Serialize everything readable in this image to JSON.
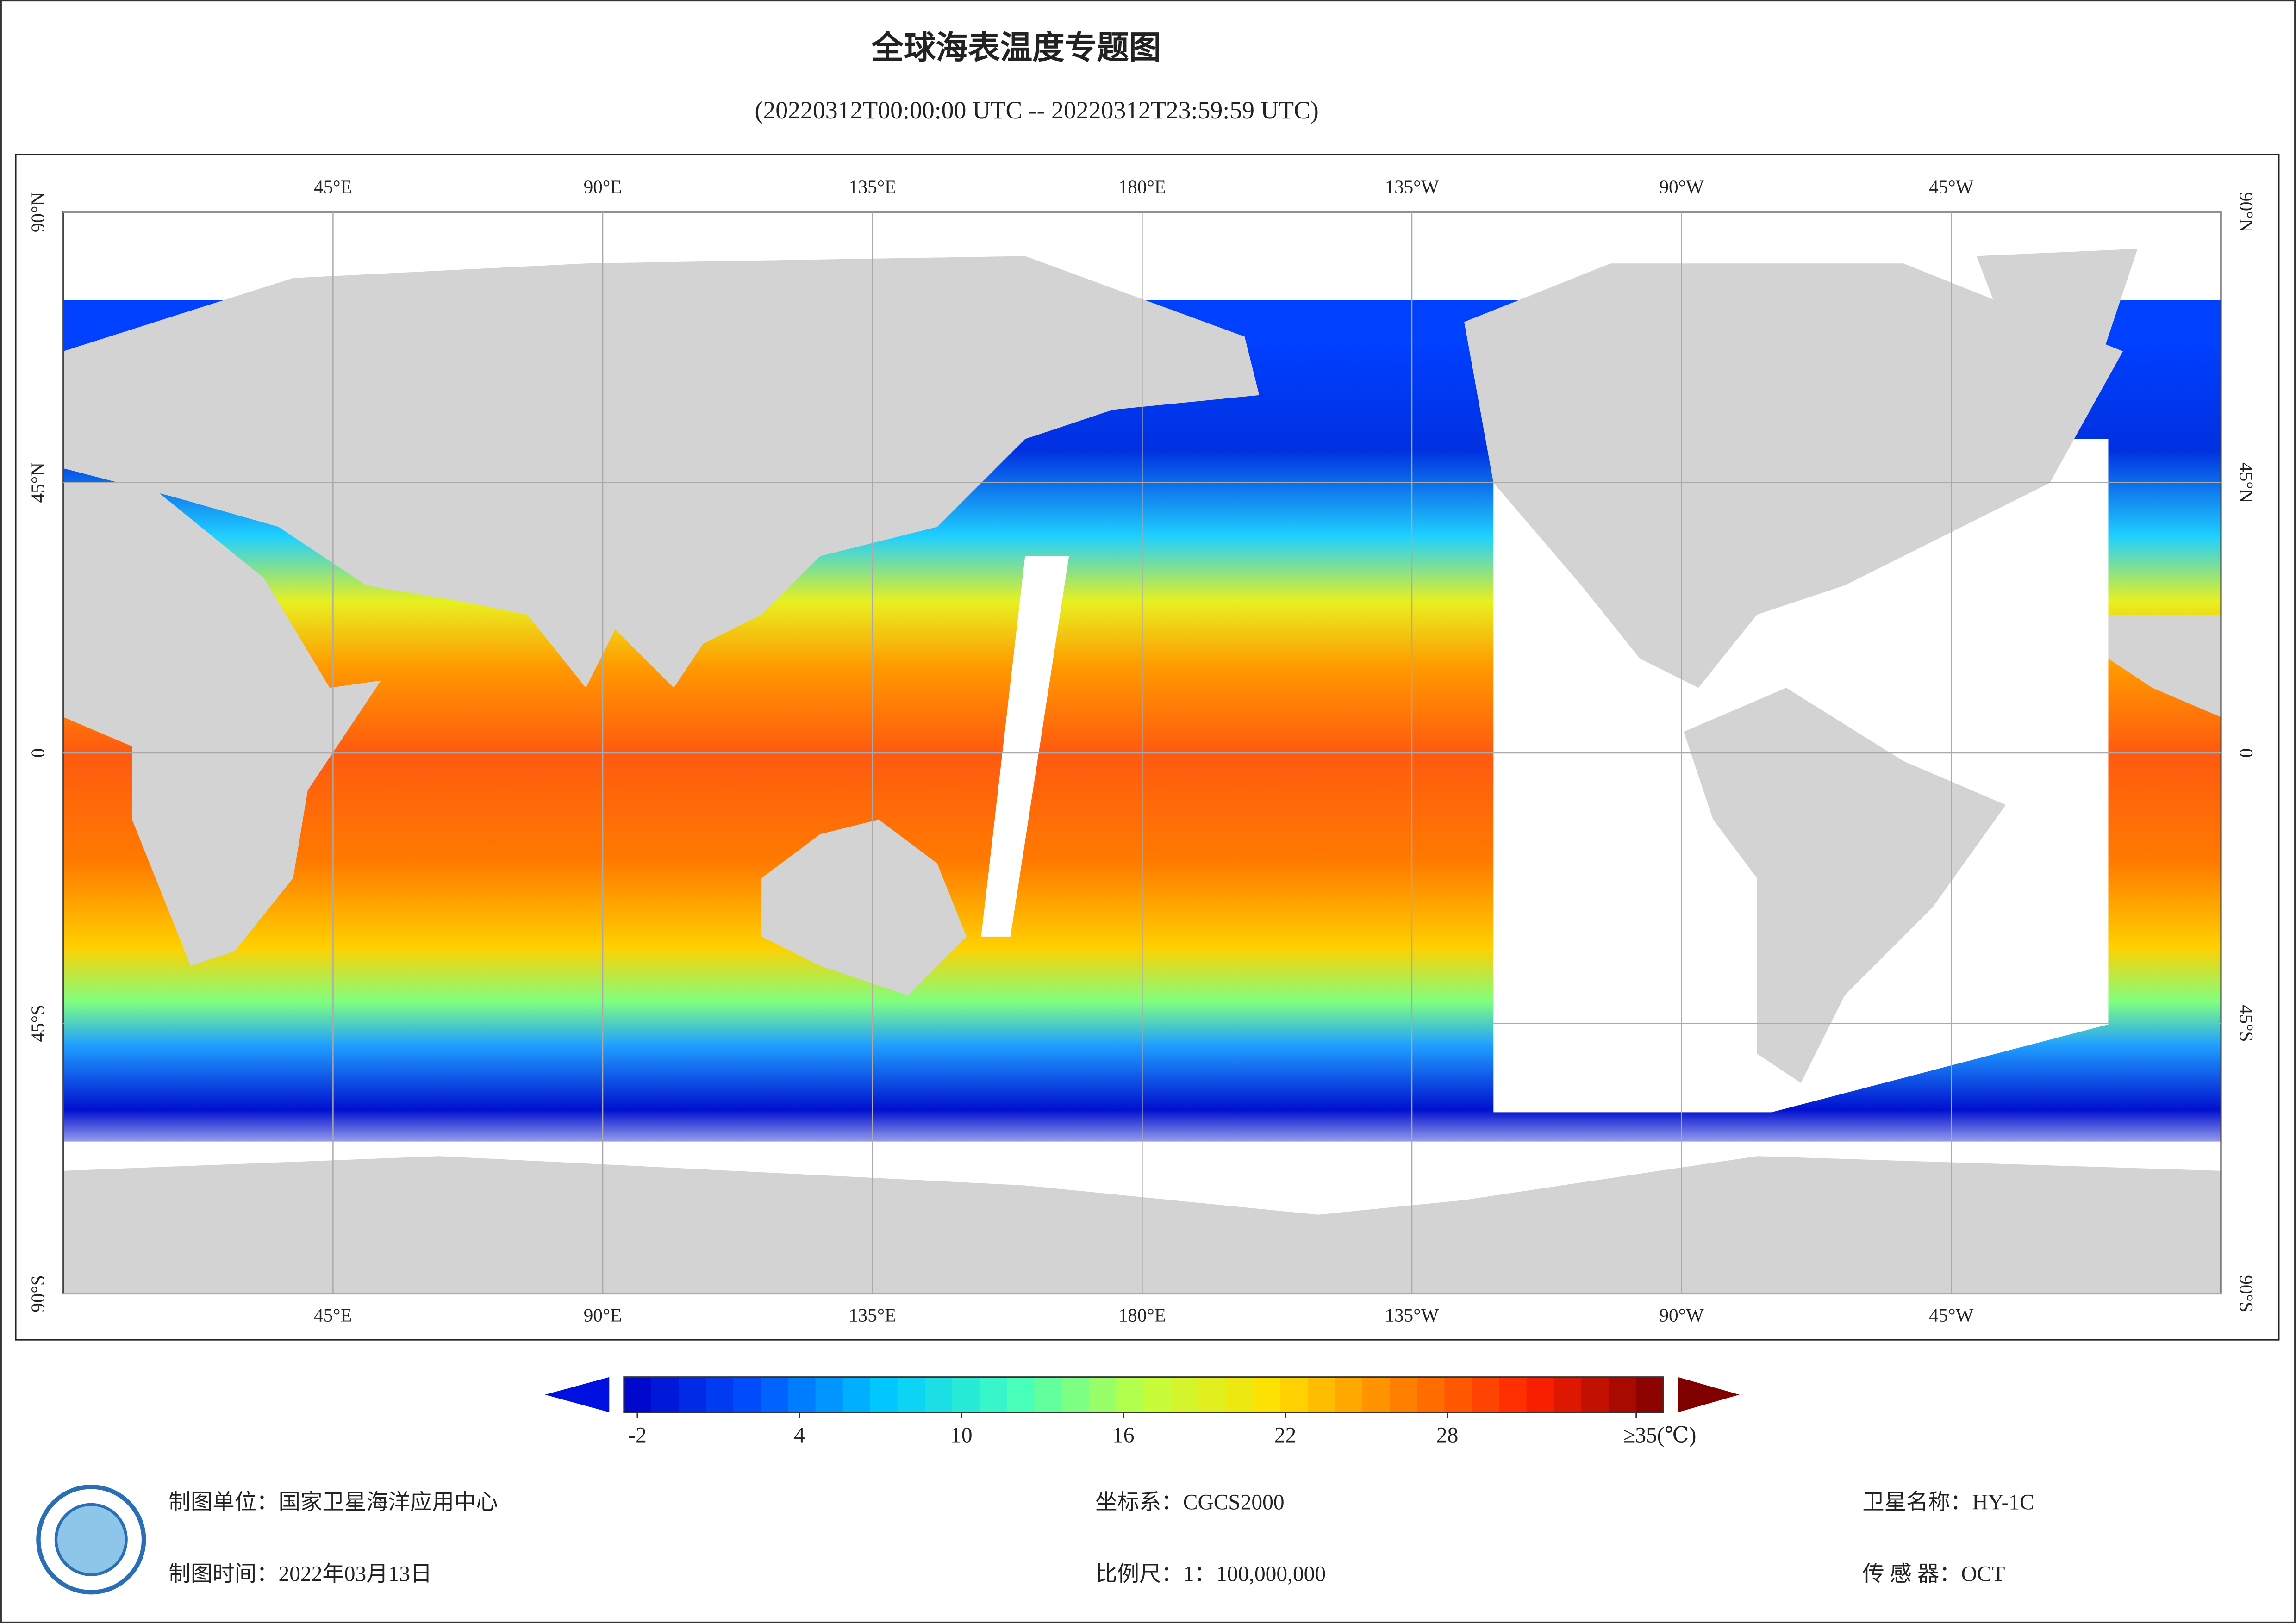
{
  "title": "全球海表温度专题图",
  "subtitle": "(20220312T00:00:00 UTC -- 20220312T23:59:59 UTC)",
  "map": {
    "lon_range": [
      0,
      360
    ],
    "lat_range": [
      -90,
      90
    ],
    "lon_ticks": [
      {
        "value": 45,
        "label": "45°E"
      },
      {
        "value": 90,
        "label": "90°E"
      },
      {
        "value": 135,
        "label": "135°E"
      },
      {
        "value": 180,
        "label": "180°E"
      },
      {
        "value": 225,
        "label": "135°W"
      },
      {
        "value": 270,
        "label": "90°W"
      },
      {
        "value": 315,
        "label": "45°W"
      }
    ],
    "lat_ticks": [
      {
        "value": 90,
        "label": "90°N"
      },
      {
        "value": 45,
        "label": "45°N"
      },
      {
        "value": 0,
        "label": "0"
      },
      {
        "value": -45,
        "label": "45°S"
      },
      {
        "value": -90,
        "label": "90°S"
      }
    ]
  },
  "colorbar": {
    "range": [
      -2.5,
      36
    ],
    "ticks": [
      -2,
      4,
      10,
      16,
      22,
      28,
      {
        "value": 35,
        "label": "≥35(℃)"
      }
    ],
    "colors": [
      "#0000c8",
      "#0050ff",
      "#00c8ff",
      "#40ffc0",
      "#c0ff40",
      "#ffe000",
      "#ff8000",
      "#ff2000",
      "#800000"
    ]
  },
  "footer": {
    "organization": "制图单位：国家卫星海洋应用中心",
    "date": "制图时间：2022年03月13日",
    "crs": "坐标系：CGCS2000",
    "scale": "比例尺：1：100,000,000",
    "satellite": "卫星名称：HY-1C",
    "sensor": "传 感 器：OCT"
  }
}
